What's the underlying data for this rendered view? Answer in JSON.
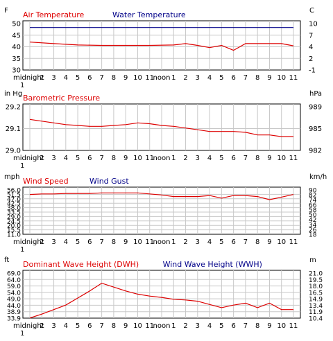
{
  "x_ticks": [
    "midnight",
    "2",
    "3",
    "4",
    "5",
    "6",
    "7",
    "8",
    "9",
    "10",
    "11",
    "noon",
    "1",
    "2",
    "3",
    "4",
    "5",
    "6",
    "7",
    "8",
    "9",
    "10",
    "11"
  ],
  "x_tick_sub": "1",
  "chart_data": [
    {
      "type": "line",
      "left_unit": "F",
      "right_unit": "C",
      "legend": [
        {
          "text": "Air Temperature",
          "color": "#dd0000"
        },
        {
          "text": "Water Temperature",
          "color": "#000088"
        }
      ],
      "yticks_left": [
        "50",
        "45",
        "40",
        "35",
        "30"
      ],
      "yticks_right": [
        "10",
        "7",
        "4",
        "2",
        "-1"
      ],
      "ylim": [
        30,
        52
      ],
      "series": [
        {
          "name": "Air Temperature",
          "color": "#dd0000",
          "x": [
            1,
            3,
            5,
            7,
            9,
            11,
            13,
            14,
            15,
            16,
            17,
            18,
            19,
            20,
            21,
            22,
            23
          ],
          "y": [
            42.5,
            41.8,
            41.2,
            41.0,
            41.0,
            41.0,
            41.2,
            41.8,
            41.0,
            40.0,
            41.0,
            38.8,
            41.8,
            41.8,
            41.8,
            41.8,
            40.8
          ]
        },
        {
          "name": "Water Temperature",
          "color": "#000088",
          "x": [
            1,
            23
          ],
          "y": [
            49.0,
            49.0
          ]
        }
      ]
    },
    {
      "type": "line",
      "left_unit": "in Hg",
      "right_unit": "hPa",
      "legend": [
        {
          "text": "Barometric Pressure",
          "color": "#dd0000"
        }
      ],
      "yticks_left": [
        "29.2",
        "29.1",
        "29.0"
      ],
      "yticks_right": [
        "989",
        "985",
        "982"
      ],
      "ylim": [
        29.0,
        29.27
      ],
      "series": [
        {
          "name": "Barometric Pressure",
          "color": "#dd0000",
          "x": [
            1,
            2,
            3,
            4,
            5,
            6,
            7,
            8,
            9,
            10,
            11,
            12,
            13,
            14,
            15,
            16,
            17,
            18,
            19,
            20,
            21,
            22,
            23
          ],
          "y": [
            29.18,
            29.17,
            29.16,
            29.15,
            29.145,
            29.14,
            29.14,
            29.145,
            29.15,
            29.16,
            29.155,
            29.145,
            29.14,
            29.13,
            29.12,
            29.11,
            29.11,
            29.11,
            29.105,
            29.09,
            29.09,
            29.08,
            29.08
          ]
        }
      ]
    },
    {
      "type": "line",
      "left_unit": "mph",
      "right_unit": "km/h",
      "legend": [
        {
          "text": "Wind Speed",
          "color": "#dd0000"
        },
        {
          "text": "Wind Gust",
          "color": "#000088"
        }
      ],
      "yticks_left": [
        "56.0",
        "51.5",
        "47.0",
        "42.5",
        "38.0",
        "33.5",
        "29.0",
        "24.5",
        "20.0",
        "15.5",
        "11.0"
      ],
      "yticks_right": [
        "90",
        "82",
        "74",
        "66",
        "58",
        "50",
        "42",
        "34",
        "26",
        "18"
      ],
      "ylim": [
        11.0,
        56.0
      ],
      "series": [
        {
          "name": "Wind Speed",
          "color": "#dd0000",
          "x": [
            1,
            2,
            3,
            4,
            5,
            6,
            7,
            8,
            9,
            10,
            11,
            12,
            13,
            14,
            15,
            16,
            17,
            18,
            19,
            20,
            21,
            22,
            23
          ],
          "y": [
            49.0,
            49.5,
            49.5,
            50.0,
            50.0,
            50.0,
            50.5,
            50.5,
            50.5,
            50.5,
            49.5,
            48.5,
            47.0,
            47.0,
            47.0,
            48.0,
            45.5,
            48.0,
            48.0,
            47.0,
            44.0,
            46.5,
            49.0
          ]
        }
      ]
    },
    {
      "type": "line",
      "left_unit": "ft",
      "right_unit": "m",
      "legend": [
        {
          "text": "Dominant Wave Height (DWH)",
          "color": "#dd0000"
        },
        {
          "text": "Wind Wave Height (WWH)",
          "color": "#000088"
        }
      ],
      "yticks_left": [
        "69.0",
        "64.0",
        "59.0",
        "54.0",
        "49.0",
        "44.0",
        "38.9",
        "33.9"
      ],
      "yticks_right": [
        "21.0",
        "19.5",
        "18.0",
        "16.5",
        "14.9",
        "13.4",
        "11.9",
        "10.4"
      ],
      "ylim": [
        33.9,
        71.0
      ],
      "series": [
        {
          "name": "Dominant Wave Height (DWH)",
          "color": "#dd0000",
          "x": [
            1,
            2,
            3,
            4,
            5,
            6,
            7,
            8,
            9,
            10,
            11,
            12,
            13,
            14,
            15,
            16,
            17,
            18,
            19,
            20,
            21,
            22,
            23
          ],
          "y": [
            34.0,
            37.0,
            40.5,
            44.0,
            49.5,
            55.0,
            61.0,
            58.0,
            55.0,
            52.5,
            51.0,
            50.0,
            48.5,
            48.0,
            47.0,
            44.5,
            42.0,
            44.0,
            45.5,
            42.0,
            45.5,
            40.5,
            40.5
          ]
        }
      ]
    }
  ]
}
